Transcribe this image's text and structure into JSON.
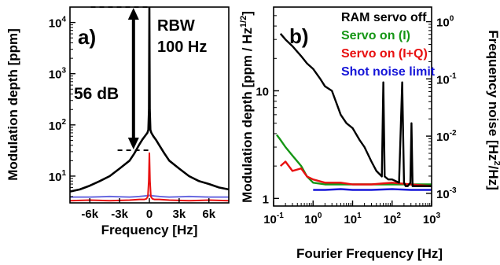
{
  "chart_data": [
    {
      "type": "line",
      "panel_label": "a)",
      "xlabel": "Frequency [Hz]",
      "ylabel": "Modulation depth [ppm]",
      "xlim": [
        -8000,
        8000
      ],
      "ylim": [
        3,
        20000
      ],
      "y_scale": "log",
      "x_ticks": [
        -6000,
        -3000,
        0,
        3000,
        6000
      ],
      "x_tick_labels": [
        "-6k",
        "-3k",
        "0",
        "3k",
        "6k"
      ],
      "y_ticks": [
        10,
        100,
        1000,
        10000
      ],
      "y_tick_labels": [
        "10",
        "10",
        "10",
        "10"
      ],
      "y_tick_exponents": [
        "1",
        "2",
        "3",
        "4"
      ],
      "annotations": {
        "rbw_line1": "RBW",
        "rbw_line2": "100 Hz",
        "dynamic_range": "56 dB",
        "arrow_top": 20000,
        "arrow_bottom": 32
      },
      "series": [
        {
          "color": "#000000",
          "x": [
            -8000,
            -7000,
            -6000,
            -5000,
            -4000,
            -3000,
            -2000,
            -1500,
            -1000,
            -700,
            -400,
            -200,
            -100,
            -40,
            0,
            40,
            100,
            200,
            400,
            700,
            1000,
            1500,
            2000,
            3000,
            4000,
            5000,
            6000,
            7000,
            8000
          ],
          "y": [
            5,
            5.5,
            6.5,
            8,
            10,
            14,
            20,
            28,
            42,
            52,
            62,
            70,
            80,
            200,
            20000,
            200,
            80,
            70,
            60,
            50,
            40,
            28,
            20,
            14,
            10,
            8,
            7,
            6,
            5.5
          ]
        },
        {
          "color": "#e81010",
          "x": [
            -8000,
            -6000,
            -4000,
            -2000,
            -1000,
            -500,
            -300,
            -150,
            -60,
            0,
            60,
            150,
            300,
            500,
            1000,
            2000,
            4000,
            6000,
            8000
          ],
          "y": [
            3.3,
            3.4,
            3.3,
            3.4,
            3.5,
            3.5,
            3.6,
            4,
            8,
            28,
            8,
            4,
            3.6,
            3.5,
            3.5,
            3.4,
            3.3,
            3.4,
            3.3
          ]
        },
        {
          "color": "#6a6ae0",
          "x": [
            -8000,
            -6000,
            -4000,
            -2000,
            -1000,
            -500,
            0,
            500,
            1000,
            2000,
            4000,
            6000,
            8000
          ],
          "y": [
            3.9,
            3.9,
            4,
            3.9,
            4,
            4.1,
            4.2,
            4.1,
            4,
            3.9,
            4,
            3.9,
            3.9
          ]
        }
      ]
    },
    {
      "type": "line",
      "panel_label": "b)",
      "xlabel": "Fourier Frequency [Hz]",
      "ylabel": "Modulation depth [ppm / Hz",
      "ylabel_sup": "1/2",
      "ylabel_close": "]",
      "y2label": "Frequency noise [Hz",
      "y2label_sup": "2",
      "y2label_close": "/Hz]",
      "xlim": [
        0.1,
        1000
      ],
      "ylim": [
        0.85,
        60
      ],
      "x_scale": "log",
      "y_scale": "log",
      "y2lim": [
        0.0006,
        1.8
      ],
      "y2_scale": "log",
      "x_ticks": [
        0.1,
        1,
        10,
        100,
        1000
      ],
      "x_tick_labels": [
        "10",
        "10",
        "10",
        "10",
        "10"
      ],
      "x_tick_exponents": [
        "-1",
        "0",
        "1",
        "2",
        "3"
      ],
      "y_ticks": [
        1,
        10
      ],
      "y_tick_labels": [
        "1",
        "10"
      ],
      "y2_ticks": [
        0.001,
        0.01,
        0.1,
        1
      ],
      "y2_tick_labels": [
        "10",
        "10",
        "10",
        "10"
      ],
      "y2_tick_exponents": [
        "-3",
        "-2",
        "-1",
        "0"
      ],
      "legend_position": "top-right",
      "series": [
        {
          "name": "RAM servo off",
          "color": "#000000",
          "x": [
            0.15,
            0.2,
            0.3,
            0.5,
            0.7,
            1,
            1.5,
            2,
            3,
            4,
            5,
            7,
            10,
            15,
            20,
            30,
            40,
            55,
            60,
            65,
            80,
            100,
            150,
            180,
            200,
            220,
            250,
            290,
            310,
            330,
            400,
            600,
            1000
          ],
          "y": [
            34,
            30,
            26,
            21,
            18,
            16,
            13,
            11,
            10,
            7.5,
            6,
            5,
            4.5,
            3.5,
            3,
            2.2,
            1.8,
            1.6,
            12,
            1.6,
            1.5,
            1.5,
            1.4,
            12,
            1.4,
            1.3,
            1.3,
            1.4,
            5,
            1.3,
            1.3,
            1.3,
            1.3
          ]
        },
        {
          "name": "Servo on (I)",
          "color": "#159615",
          "x": [
            0.12,
            0.15,
            0.2,
            0.3,
            0.5,
            0.7,
            1,
            2,
            5,
            10,
            30,
            100,
            300,
            1000
          ],
          "y": [
            3.9,
            3.5,
            3.0,
            2.5,
            2.0,
            1.6,
            1.4,
            1.35,
            1.35,
            1.35,
            1.35,
            1.35,
            1.35,
            1.35
          ]
        },
        {
          "name": "Servo on (I+Q)",
          "color": "#e81010",
          "x": [
            0.15,
            0.2,
            0.3,
            0.5,
            0.7,
            1,
            2,
            5,
            10,
            30,
            100,
            300,
            1000
          ],
          "y": [
            2.0,
            2.2,
            1.8,
            1.9,
            1.6,
            1.5,
            1.4,
            1.4,
            1.35,
            1.35,
            1.4,
            1.35,
            1.3
          ]
        },
        {
          "name": "Shot noise limit",
          "color": "#1515d8",
          "x": [
            1,
            2,
            5,
            10,
            30,
            100,
            300,
            1000
          ],
          "y": [
            1.2,
            1.2,
            1.22,
            1.2,
            1.2,
            1.22,
            1.2,
            1.2
          ]
        }
      ]
    }
  ]
}
